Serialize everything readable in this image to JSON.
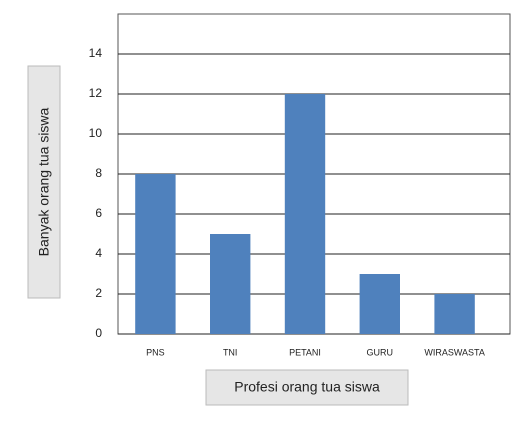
{
  "chart_data": {
    "type": "bar",
    "categories": [
      "PNS",
      "TNI",
      "PETANI",
      "GURU",
      "WIRASWASTA"
    ],
    "values": [
      8,
      5,
      12,
      3,
      2
    ],
    "color": "#4f81bd",
    "x_label": "Profesi orang tua siswa",
    "y_label": "Banyak orang tua siswa",
    "ylim": [
      0,
      16
    ],
    "yticks": [
      0,
      2,
      4,
      6,
      8,
      10,
      12,
      14
    ],
    "grid": true
  }
}
